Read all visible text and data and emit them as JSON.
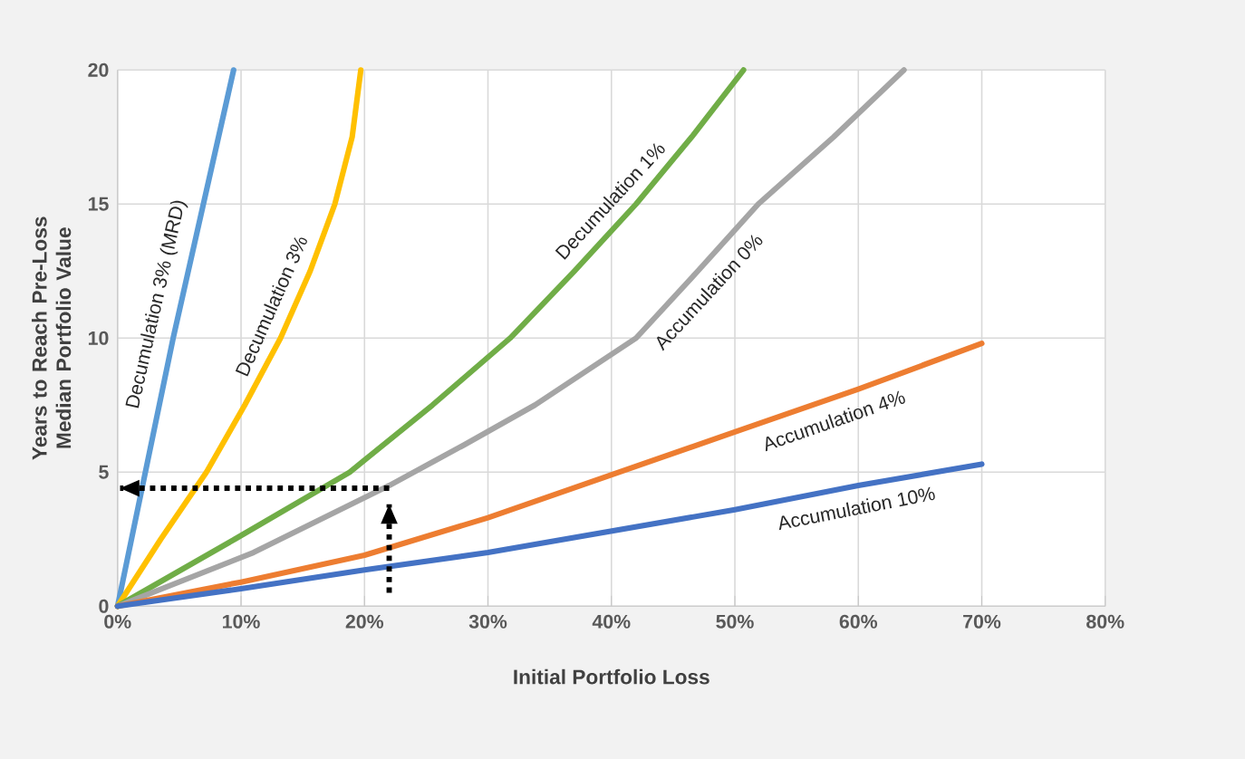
{
  "chart_data": {
    "type": "line",
    "xlabel": "Initial Portfolio Loss",
    "ylabel": "Years to Reach Pre-Loss Median Portfolio Value",
    "xlim": [
      0,
      80
    ],
    "ylim": [
      0,
      20
    ],
    "xticks": [
      {
        "value": 0,
        "label": "0%"
      },
      {
        "value": 10,
        "label": "10%"
      },
      {
        "value": 20,
        "label": "20%"
      },
      {
        "value": 30,
        "label": "30%"
      },
      {
        "value": 40,
        "label": "40%"
      },
      {
        "value": 50,
        "label": "50%"
      },
      {
        "value": 60,
        "label": "60%"
      },
      {
        "value": 70,
        "label": "70%"
      },
      {
        "value": 80,
        "label": "80%"
      }
    ],
    "yticks": [
      0,
      5,
      10,
      15,
      20
    ],
    "grid": true,
    "legend": false,
    "line_style": "solid",
    "marker": "none",
    "series": [
      {
        "name": "Decumulation 3% (MRD)",
        "color": "#5b9bd5",
        "x": [
          0,
          4.5,
          9.4
        ],
        "values": [
          0,
          10,
          20
        ]
      },
      {
        "name": "Decumulation 3%",
        "color": "#ffc000",
        "x": [
          0,
          3.5,
          7.2,
          10.3,
          13.2,
          15.6,
          17.6,
          19,
          19.7
        ],
        "values": [
          0,
          2.5,
          5,
          7.5,
          10,
          12.5,
          15,
          17.5,
          20
        ]
      },
      {
        "name": "Decumulation 1%",
        "color": "#70ad47",
        "x": [
          0,
          9.5,
          18.8,
          25.5,
          31.8,
          37,
          42,
          46.5,
          50.7
        ],
        "values": [
          0,
          2.5,
          5,
          7.5,
          10,
          12.5,
          15,
          17.5,
          20
        ]
      },
      {
        "name": "Accumulation 0%",
        "color": "#a5a5a5",
        "x": [
          0,
          11,
          22,
          28,
          33.8,
          42,
          47,
          51.9,
          58,
          63.7
        ],
        "values": [
          0,
          2,
          4.5,
          6,
          7.5,
          10,
          12.5,
          15,
          17.5,
          20
        ]
      },
      {
        "name": "Accumulation 4%",
        "color": "#ed7d31",
        "x": [
          0,
          10,
          20,
          30,
          40,
          50,
          60,
          70
        ],
        "values": [
          0,
          0.9,
          1.9,
          3.3,
          4.9,
          6.5,
          8.1,
          9.8
        ]
      },
      {
        "name": "Accumulation 10%",
        "color": "#4472c4",
        "x": [
          0,
          10,
          20,
          30,
          40,
          50,
          60,
          70
        ],
        "values": [
          0,
          0.65,
          1.35,
          2.0,
          2.8,
          3.6,
          4.5,
          5.3
        ]
      },
      {
        "color": "#000000",
        "line_style": "dotted",
        "x": [
          22,
          22
        ],
        "values": [
          0.5,
          3.8
        ]
      },
      {
        "color": "#000000",
        "line_style": "dotted",
        "x": [
          22,
          0.2
        ],
        "values": [
          4.4,
          4.4
        ]
      }
    ]
  }
}
